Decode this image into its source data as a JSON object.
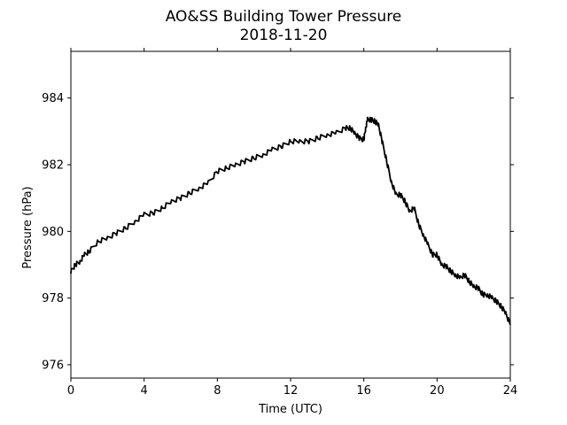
{
  "chart_data": {
    "type": "line",
    "title": "AO&SS Building Tower Pressure",
    "subtitle": "2018-11-20",
    "xlabel": "Time (UTC)",
    "ylabel": "Pressure (hPa)",
    "xlim": [
      0,
      24
    ],
    "ylim": [
      975.6,
      985.4
    ],
    "xticks": [
      0,
      4,
      8,
      12,
      16,
      20,
      24
    ],
    "yticks": [
      976,
      978,
      980,
      982,
      984
    ],
    "grid": false,
    "series": [
      {
        "color": "#000000",
        "x": [
          0,
          0.25,
          0.5,
          0.75,
          1,
          1.5,
          2,
          2.5,
          3,
          3.5,
          4,
          4.5,
          5,
          5.5,
          6,
          6.5,
          7,
          7.5,
          8,
          8.5,
          9,
          9.5,
          10,
          10.5,
          11,
          11.5,
          12,
          12.5,
          13,
          13.5,
          14,
          14.5,
          15,
          15.25,
          15.5,
          15.75,
          16,
          16.1,
          16.2,
          16.4,
          16.6,
          16.8,
          17,
          17.25,
          17.5,
          17.75,
          18,
          18.25,
          18.5,
          18.75,
          19,
          19.25,
          19.5,
          19.75,
          20,
          20.25,
          20.5,
          20.75,
          21,
          21.25,
          21.5,
          21.75,
          22,
          22.25,
          22.5,
          22.75,
          23,
          23.25,
          23.5,
          23.75,
          24
        ],
        "y": [
          978.8,
          979.0,
          979.1,
          979.3,
          979.4,
          979.7,
          979.8,
          979.95,
          980.1,
          980.3,
          980.5,
          980.55,
          980.7,
          980.9,
          981.0,
          981.15,
          981.3,
          981.45,
          981.8,
          981.9,
          982.0,
          982.1,
          982.2,
          982.3,
          982.45,
          982.55,
          982.7,
          982.7,
          982.7,
          982.8,
          982.9,
          982.95,
          983.1,
          983.1,
          982.95,
          982.8,
          982.75,
          983.1,
          983.35,
          983.35,
          983.3,
          983.2,
          982.7,
          982.1,
          981.5,
          981.1,
          981.1,
          980.9,
          980.6,
          980.7,
          980.2,
          979.9,
          979.6,
          979.3,
          979.3,
          979.0,
          978.95,
          978.8,
          978.7,
          978.6,
          978.7,
          978.5,
          978.35,
          978.3,
          978.1,
          978.1,
          978.0,
          977.9,
          977.75,
          977.55,
          977.2
        ]
      }
    ]
  }
}
